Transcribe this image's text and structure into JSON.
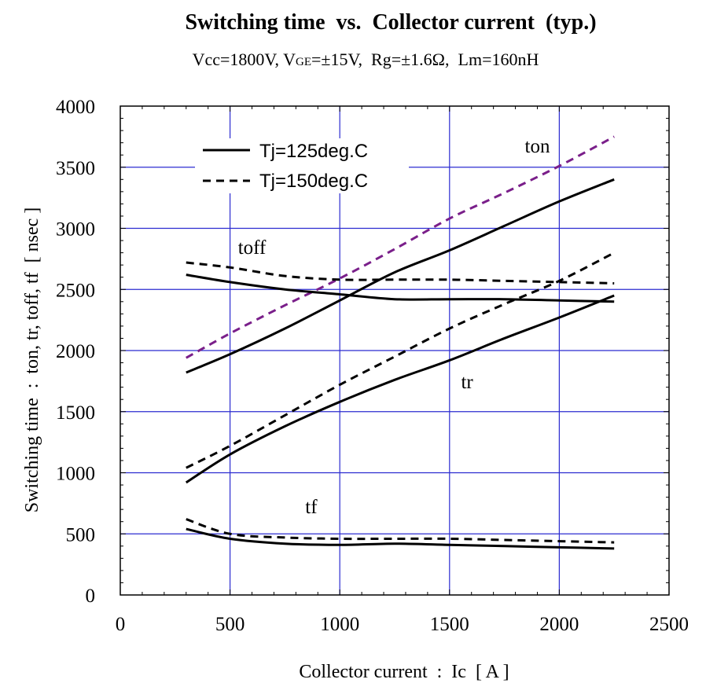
{
  "chart_data": {
    "type": "line",
    "title": "Switching time  vs.  Collector current  (typ.)",
    "subtitle": {
      "parts": [
        "Vcc=1800V, V",
        "GE",
        "=±15V,  Rg=±1.6Ω,  Lm=160nH"
      ]
    },
    "xlabel": "Collector current  :  Ic  [ A ]",
    "ylabel": "Switching time  :  ton, tr, toff, tf  [ nsec ]",
    "xlim": [
      0,
      2500
    ],
    "ylim": [
      0,
      4000
    ],
    "xticks": [
      0,
      500,
      1000,
      1500,
      2000,
      2500
    ],
    "yticks": [
      0,
      500,
      1000,
      1500,
      2000,
      2500,
      3000,
      3500,
      4000
    ],
    "grid": true,
    "legend": {
      "position": "top-left",
      "entries": [
        {
          "label": "Tj=125deg.C",
          "style": "solid"
        },
        {
          "label": "Tj=150deg.C",
          "style": "dashed"
        }
      ]
    },
    "annotations": [
      {
        "text": "ton",
        "x": 1900,
        "y": 3620
      },
      {
        "text": "toff",
        "x": 600,
        "y": 2790
      },
      {
        "text": "tr",
        "x": 1580,
        "y": 1690
      },
      {
        "text": "tf",
        "x": 870,
        "y": 670
      }
    ],
    "colors": {
      "grid": "#2b2bd0",
      "solid": "#000000",
      "dashed": "#000000",
      "ton_150": "#7a1f8a"
    },
    "series": [
      {
        "name": "ton Tj=125deg.C",
        "style": "solid",
        "color": "#000000",
        "x": [
          300,
          500,
          750,
          1000,
          1250,
          1500,
          1750,
          2000,
          2250
        ],
        "y": [
          1820,
          1970,
          2180,
          2410,
          2640,
          2820,
          3020,
          3220,
          3400
        ]
      },
      {
        "name": "ton Tj=150deg.C",
        "style": "dashed",
        "color": "#7a1f8a",
        "x": [
          300,
          500,
          750,
          1000,
          1250,
          1500,
          1750,
          2000,
          2250
        ],
        "y": [
          1940,
          2140,
          2370,
          2590,
          2830,
          3080,
          3290,
          3510,
          3750
        ]
      },
      {
        "name": "toff Tj=125deg.C",
        "style": "solid",
        "color": "#000000",
        "x": [
          300,
          500,
          750,
          1000,
          1250,
          1500,
          1750,
          2000,
          2250
        ],
        "y": [
          2620,
          2560,
          2500,
          2460,
          2420,
          2420,
          2420,
          2410,
          2400
        ]
      },
      {
        "name": "toff Tj=150deg.C",
        "style": "dashed",
        "color": "#000000",
        "x": [
          300,
          500,
          750,
          1000,
          1250,
          1500,
          1750,
          2000,
          2250
        ],
        "y": [
          2720,
          2680,
          2610,
          2580,
          2580,
          2580,
          2570,
          2560,
          2550
        ]
      },
      {
        "name": "tr Tj=125deg.C",
        "style": "solid",
        "color": "#000000",
        "x": [
          300,
          500,
          750,
          1000,
          1250,
          1500,
          1750,
          2000,
          2250
        ],
        "y": [
          920,
          1150,
          1380,
          1580,
          1760,
          1920,
          2100,
          2270,
          2450
        ]
      },
      {
        "name": "tr Tj=150deg.C",
        "style": "dashed",
        "color": "#000000",
        "x": [
          300,
          500,
          750,
          1000,
          1250,
          1500,
          1750,
          2000,
          2250
        ],
        "y": [
          1040,
          1220,
          1470,
          1720,
          1950,
          2180,
          2380,
          2570,
          2800
        ]
      },
      {
        "name": "tf Tj=125deg.C",
        "style": "solid",
        "color": "#000000",
        "x": [
          300,
          500,
          750,
          1000,
          1250,
          1500,
          1750,
          2000,
          2250
        ],
        "y": [
          540,
          460,
          420,
          410,
          420,
          410,
          400,
          390,
          380
        ]
      },
      {
        "name": "tf Tj=150deg.C",
        "style": "dashed",
        "color": "#000000",
        "x": [
          300,
          500,
          750,
          1000,
          1250,
          1500,
          1750,
          2000,
          2250
        ],
        "y": [
          620,
          500,
          470,
          460,
          460,
          460,
          450,
          440,
          430
        ]
      }
    ]
  }
}
